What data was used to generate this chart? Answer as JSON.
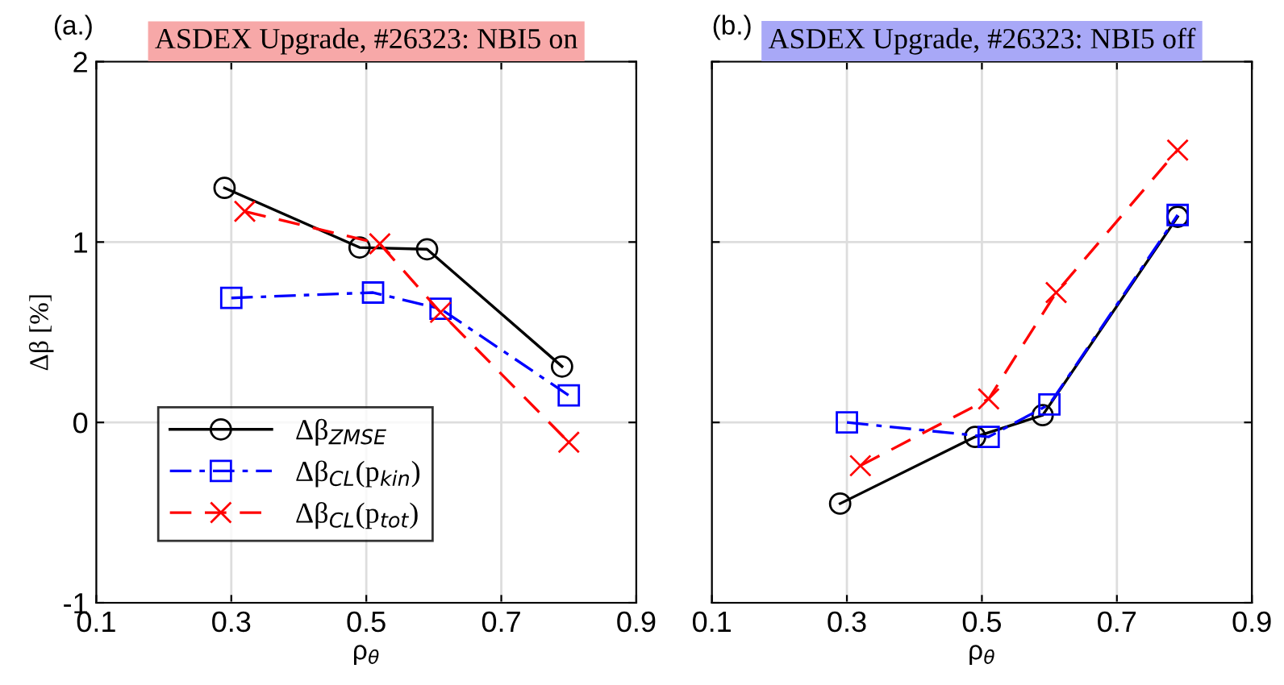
{
  "chart_data": [
    {
      "type": "line",
      "title": "ASDEX Upgrade, #26323: NBI5 on",
      "annotations": [
        "(a.)"
      ],
      "xlabel": "ρ$_{θ}$",
      "ylabel": "Δβ [%]",
      "xlim": [
        0.1,
        0.9
      ],
      "xticks": [
        0.1,
        0.3,
        0.5,
        0.7,
        0.9
      ],
      "ylim": [
        -1,
        2
      ],
      "yticks": [
        -1,
        0,
        1,
        2
      ],
      "grid": true,
      "legend": "bottom left",
      "series": [
        {
          "name": "Δβ$_{ZMSE}$",
          "color": "#000000",
          "marker": "circle",
          "line_style": "solid",
          "x": [
            0.29,
            0.49,
            0.59,
            0.79
          ],
          "values": [
            1.3,
            0.97,
            0.96,
            0.31
          ]
        },
        {
          "name": "Δβ$_{CL}$(p$_{kin}$)",
          "color": "#0000ff",
          "marker": "square",
          "line_style": "dashdot",
          "x": [
            0.3,
            0.51,
            0.61,
            0.8
          ],
          "values": [
            0.69,
            0.72,
            0.63,
            0.15
          ]
        },
        {
          "name": "Δβ$_{CL}$(p$_{tot}$)",
          "color": "#ff0000",
          "marker": "cross",
          "line_style": "dashed",
          "x": [
            0.32,
            0.52,
            0.61,
            0.8
          ],
          "values": [
            1.17,
            0.99,
            0.61,
            -0.11
          ]
        }
      ]
    },
    {
      "type": "line",
      "title": "ASDEX Upgrade, #26323: NBI5 off",
      "annotations": [
        "(b.)"
      ],
      "xlabel": "ρ$_{θ}$",
      "xlim": [
        0.1,
        0.9
      ],
      "xticks": [
        0.1,
        0.3,
        0.5,
        0.7,
        0.9
      ],
      "ylim": [
        -1,
        2
      ],
      "yticks": [
        -1,
        0,
        1,
        2
      ],
      "grid": true,
      "tick_labels": "x",
      "series": [
        {
          "color": "#000000",
          "marker": "circle",
          "line_style": "solid",
          "x": [
            0.29,
            0.49,
            0.59,
            0.79
          ],
          "values": [
            -0.45,
            -0.08,
            0.04,
            1.14
          ]
        },
        {
          "color": "#0000ff",
          "marker": "square",
          "line_style": "dashdot",
          "x": [
            0.3,
            0.51,
            0.6,
            0.79
          ],
          "values": [
            0.0,
            -0.08,
            0.1,
            1.15
          ]
        },
        {
          "color": "#ff0000",
          "marker": "cross",
          "line_style": "dashed",
          "x": [
            0.32,
            0.51,
            0.61,
            0.79
          ],
          "values": [
            -0.24,
            0.13,
            0.72,
            1.51
          ]
        }
      ]
    }
  ]
}
